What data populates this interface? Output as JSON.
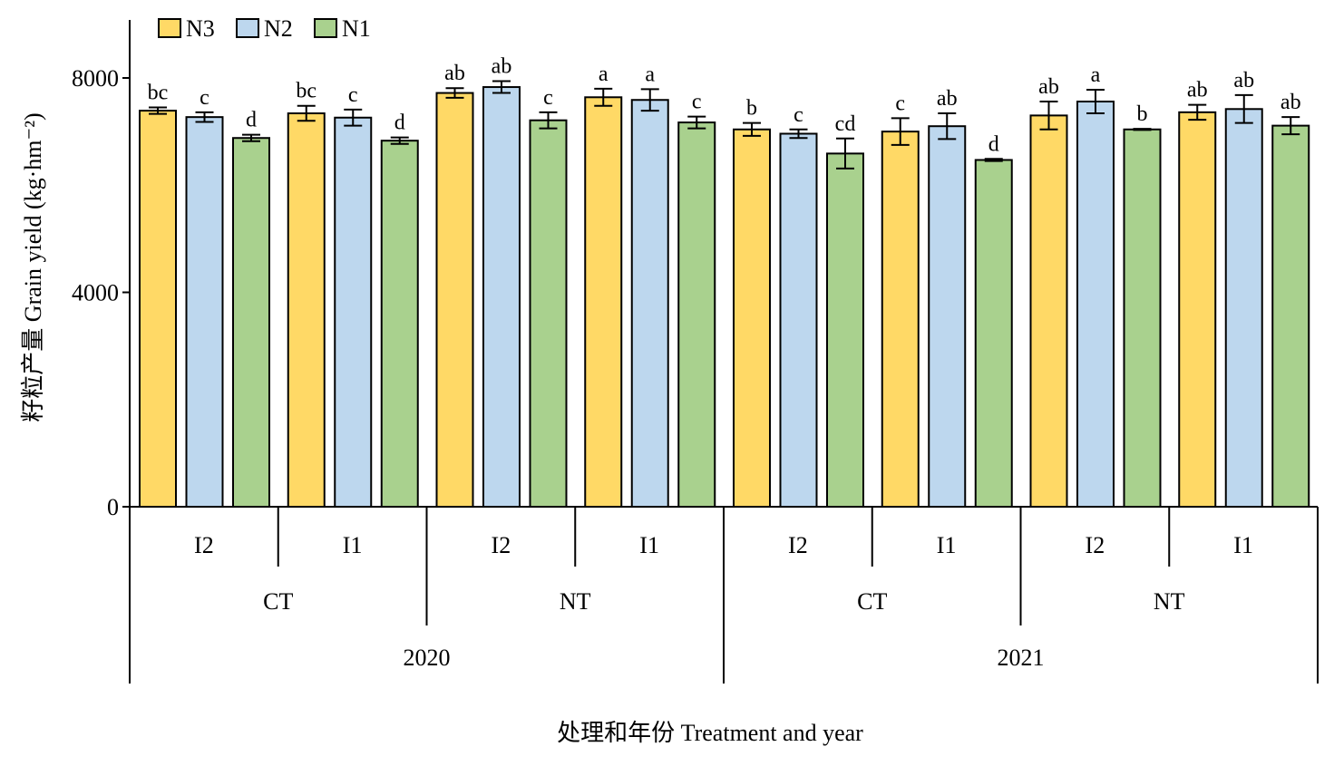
{
  "chart_data": {
    "type": "bar",
    "ylabel": "籽粒产量 Grain yield (kg·hm⁻²)",
    "xlabel": "处理和年份 Treatment and year",
    "ylim": [
      0,
      9000
    ],
    "yticks": [
      0,
      4000,
      8000
    ],
    "grid": false,
    "legend_position": "top-left",
    "series": [
      {
        "name": "N3",
        "color": "#FFD966"
      },
      {
        "name": "N2",
        "color": "#BDD7EE"
      },
      {
        "name": "N1",
        "color": "#A9D18E"
      }
    ],
    "groups": [
      {
        "year": "2020",
        "tillage": "CT",
        "irrigation": "I2",
        "values": [
          7390,
          7270,
          6880
        ],
        "errors": [
          60,
          90,
          60
        ],
        "labels": [
          "bc",
          "c",
          "d"
        ]
      },
      {
        "year": "2020",
        "tillage": "CT",
        "irrigation": "I1",
        "values": [
          7340,
          7260,
          6830
        ],
        "errors": [
          140,
          150,
          60
        ],
        "labels": [
          "bc",
          "c",
          "d"
        ]
      },
      {
        "year": "2020",
        "tillage": "NT",
        "irrigation": "I2",
        "values": [
          7720,
          7830,
          7210
        ],
        "errors": [
          90,
          110,
          150
        ],
        "labels": [
          "ab",
          "ab",
          "c"
        ]
      },
      {
        "year": "2020",
        "tillage": "NT",
        "irrigation": "I1",
        "values": [
          7640,
          7590,
          7170
        ],
        "errors": [
          160,
          200,
          110
        ],
        "labels": [
          "a",
          "a",
          "c"
        ]
      },
      {
        "year": "2021",
        "tillage": "CT",
        "irrigation": "I2",
        "values": [
          7040,
          6960,
          6590
        ],
        "errors": [
          120,
          80,
          280
        ],
        "labels": [
          "b",
          "c",
          "cd"
        ]
      },
      {
        "year": "2021",
        "tillage": "CT",
        "irrigation": "I1",
        "values": [
          7000,
          7100,
          6470
        ],
        "errors": [
          250,
          240,
          20
        ],
        "labels": [
          "c",
          "ab",
          "d"
        ]
      },
      {
        "year": "2021",
        "tillage": "NT",
        "irrigation": "I2",
        "values": [
          7300,
          7560,
          7040
        ],
        "errors": [
          260,
          220,
          10
        ],
        "labels": [
          "ab",
          "a",
          "b"
        ]
      },
      {
        "year": "2021",
        "tillage": "NT",
        "irrigation": "I1",
        "values": [
          7360,
          7420,
          7110
        ],
        "errors": [
          140,
          260,
          160
        ],
        "labels": [
          "ab",
          "ab",
          "ab"
        ]
      }
    ],
    "tillage_groups": [
      {
        "label": "CT"
      },
      {
        "label": "NT"
      },
      {
        "label": "CT"
      },
      {
        "label": "NT"
      }
    ],
    "year_groups": [
      {
        "label": "2020"
      },
      {
        "label": "2021"
      }
    ]
  }
}
